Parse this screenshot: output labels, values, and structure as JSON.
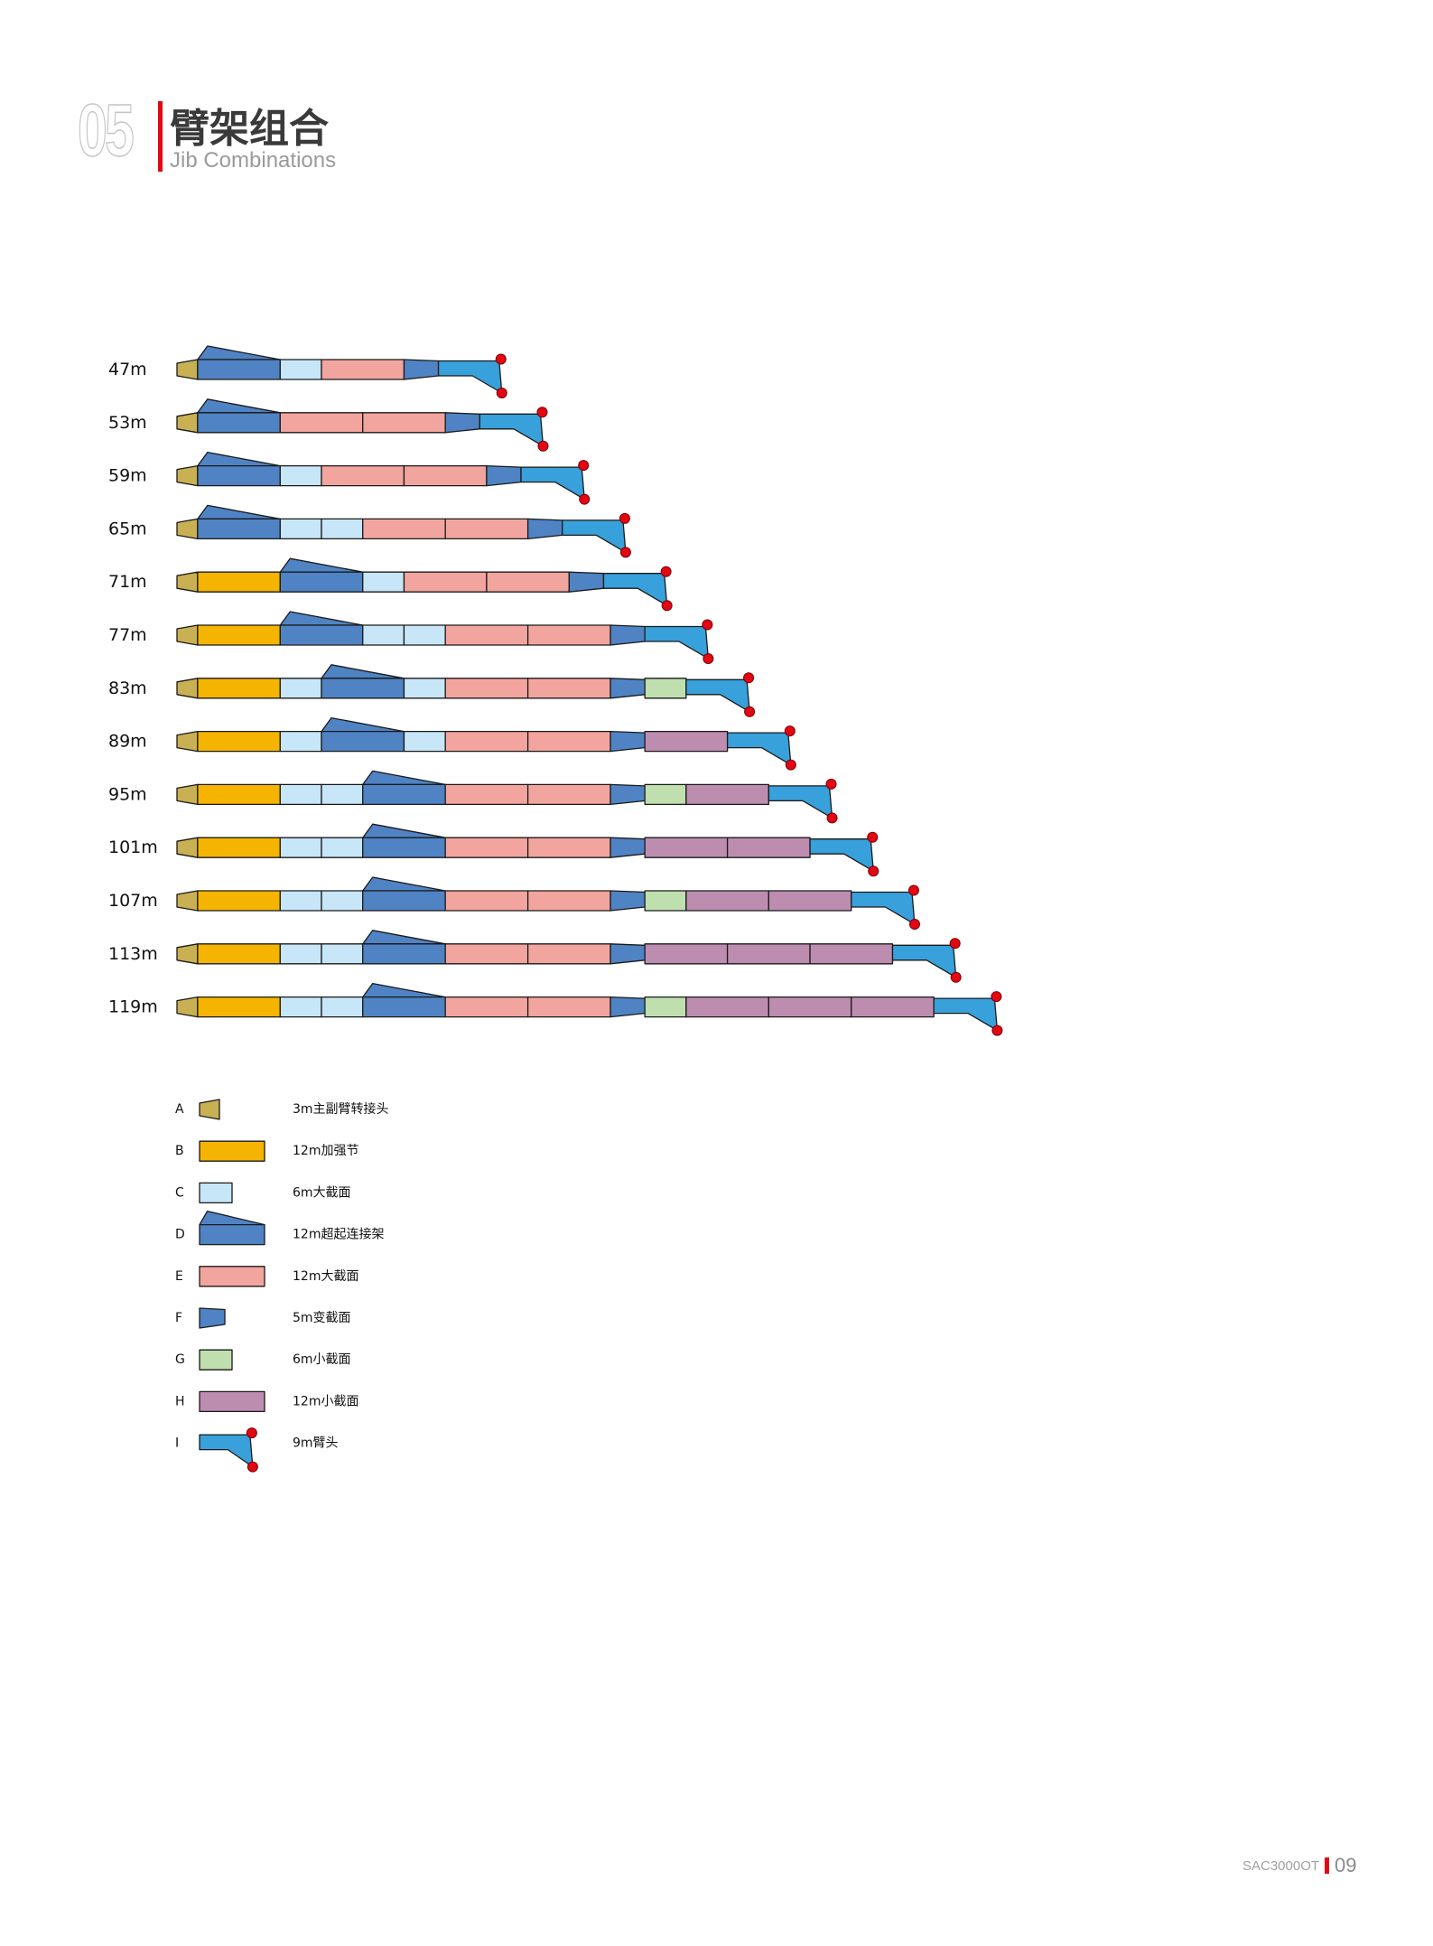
{
  "header": {
    "number": "05",
    "title": "臂架组合",
    "subtitle": "Jib Combinations"
  },
  "colors": {
    "A": "#c9b053",
    "B": "#f5b400",
    "C": "#c7e6f8",
    "D": "#4f83c4",
    "E": "#f2a59e",
    "F": "#4f83c4",
    "G": "#bfdfae",
    "H": "#bd8db0",
    "I": "#38a0da",
    "pin": "#e30613",
    "accent": "#e30613"
  },
  "segment_lengths_m": {
    "A": 3,
    "B": 12,
    "C": 6,
    "D": 12,
    "E": 12,
    "F": 5,
    "G": 6,
    "H": 12,
    "I": 9
  },
  "rows": [
    {
      "label": "47m",
      "segments": [
        "A",
        "D",
        "C",
        "E",
        "F",
        "I"
      ]
    },
    {
      "label": "53m",
      "segments": [
        "A",
        "D",
        "E",
        "E",
        "F",
        "I"
      ]
    },
    {
      "label": "59m",
      "segments": [
        "A",
        "D",
        "C",
        "E",
        "E",
        "F",
        "I"
      ]
    },
    {
      "label": "65m",
      "segments": [
        "A",
        "D",
        "C",
        "C",
        "E",
        "E",
        "F",
        "I"
      ]
    },
    {
      "label": "71m",
      "segments": [
        "A",
        "B",
        "D",
        "C",
        "E",
        "E",
        "F",
        "I"
      ]
    },
    {
      "label": "77m",
      "segments": [
        "A",
        "B",
        "D",
        "C",
        "C",
        "E",
        "E",
        "F",
        "I"
      ]
    },
    {
      "label": "83m",
      "segments": [
        "A",
        "B",
        "C",
        "D",
        "C",
        "E",
        "E",
        "F",
        "G",
        "I"
      ]
    },
    {
      "label": "89m",
      "segments": [
        "A",
        "B",
        "C",
        "D",
        "C",
        "E",
        "E",
        "F",
        "H",
        "I"
      ]
    },
    {
      "label": "95m",
      "segments": [
        "A",
        "B",
        "C",
        "C",
        "D",
        "E",
        "E",
        "F",
        "G",
        "H",
        "I"
      ]
    },
    {
      "label": "101m",
      "segments": [
        "A",
        "B",
        "C",
        "C",
        "D",
        "E",
        "E",
        "F",
        "H",
        "H",
        "I"
      ]
    },
    {
      "label": "107m",
      "segments": [
        "A",
        "B",
        "C",
        "C",
        "D",
        "E",
        "E",
        "F",
        "G",
        "H",
        "H",
        "I"
      ]
    },
    {
      "label": "113m",
      "segments": [
        "A",
        "B",
        "C",
        "C",
        "D",
        "E",
        "E",
        "F",
        "H",
        "H",
        "H",
        "I"
      ]
    },
    {
      "label": "119m",
      "segments": [
        "A",
        "B",
        "C",
        "C",
        "D",
        "E",
        "E",
        "F",
        "G",
        "H",
        "H",
        "H",
        "I"
      ]
    }
  ],
  "legend": [
    {
      "key": "A",
      "desc": "3m主副臂转接头"
    },
    {
      "key": "B",
      "desc": "12m加强节"
    },
    {
      "key": "C",
      "desc": "6m大截面"
    },
    {
      "key": "D",
      "desc": "12m超起连接架"
    },
    {
      "key": "E",
      "desc": "12m大截面"
    },
    {
      "key": "F",
      "desc": "5m变截面"
    },
    {
      "key": "G",
      "desc": "6m小截面"
    },
    {
      "key": "H",
      "desc": "12m小截面"
    },
    {
      "key": "I",
      "desc": "9m臂头"
    }
  ],
  "footer": {
    "model": "SAC3000OT",
    "page": "09"
  }
}
